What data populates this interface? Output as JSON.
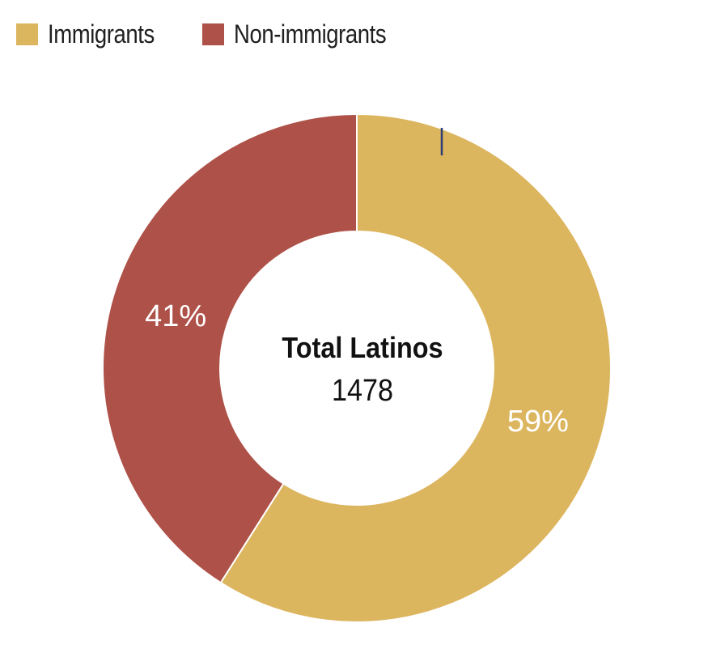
{
  "chart_data": {
    "type": "pie",
    "variant": "donut",
    "slices": [
      {
        "label": "Immigrants",
        "value": 59,
        "display": "59%",
        "color": "#dcb55f"
      },
      {
        "label": "Non-immigrants",
        "value": 41,
        "display": "41%",
        "color": "#ae5148"
      }
    ],
    "center": {
      "title": "Total Latinos",
      "value": "1478"
    },
    "legend_position": "top-left"
  }
}
